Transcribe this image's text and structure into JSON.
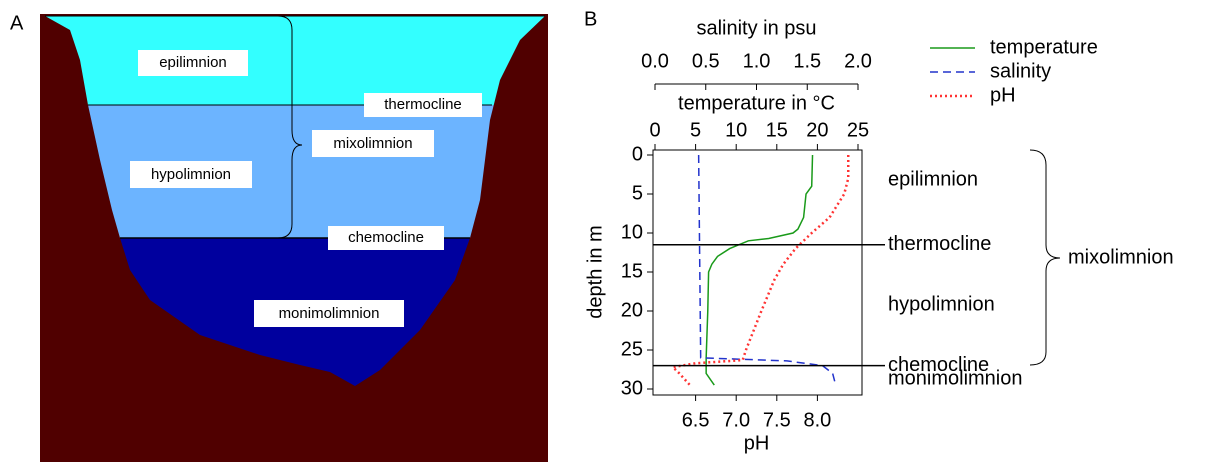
{
  "panel_a": {
    "label": "A",
    "epilimnion": "epilimnion",
    "thermocline": "thermocline",
    "hypolimnion": "hypolimnion",
    "mixolimnion": "mixolimnion",
    "chemocline": "chemocline",
    "monimolimnion": "monimolimnion"
  },
  "chart_data": {
    "type": "line",
    "panel_label": "B",
    "x_axes": [
      {
        "title": "salinity in psu",
        "xlim": [
          0,
          2
        ],
        "xticks": [
          {
            "value": 0,
            "label": "0.0"
          },
          0.5,
          {
            "value": 1,
            "label": "1.0"
          },
          1.5,
          {
            "value": 2,
            "label": "2.0"
          }
        ]
      },
      {
        "title": "temperature in °C",
        "xlim": [
          0,
          25
        ],
        "xticks": [
          0,
          5,
          10,
          15,
          20,
          25
        ]
      },
      {
        "title": "pH",
        "xlim": [
          6,
          8.5
        ],
        "xticks": [
          6.5,
          {
            "value": 7,
            "label": "7.0"
          },
          7.5,
          {
            "value": 8,
            "label": "8.0"
          }
        ]
      }
    ],
    "y_label": "depth in m",
    "ylim": [
      0,
      30
    ],
    "yticks": [
      0,
      5,
      10,
      15,
      20,
      25,
      30
    ],
    "y_inverted": true,
    "series": [
      {
        "name": "temperature",
        "color": "#1a9a1a",
        "style": "solid",
        "axis": 1,
        "depth": [
          0,
          4,
          5,
          8,
          9.5,
          10,
          10.7,
          11,
          12,
          13,
          14,
          15,
          20,
          26,
          28,
          29.5
        ],
        "values": [
          19.4,
          19.3,
          18.6,
          18.3,
          17.6,
          17.0,
          14,
          11.5,
          9.2,
          7.7,
          7.0,
          6.6,
          6.5,
          6.3,
          6.3,
          7.3
        ]
      },
      {
        "name": "salinity",
        "color": "#2233cc",
        "style": "dashed",
        "axis": 0,
        "depth": [
          0,
          26,
          26.4,
          27,
          28,
          29.5
        ],
        "values": [
          0.43,
          0.45,
          1.3,
          1.65,
          1.75,
          1.78
        ]
      },
      {
        "name": "pH",
        "color": "#ff3333",
        "style": "dotted",
        "axis": 2,
        "depth": [
          0,
          3,
          5,
          8,
          10,
          12,
          14,
          16,
          20,
          25,
          26.3,
          26.7,
          27.2,
          28,
          29.5
        ],
        "values": [
          8.38,
          8.38,
          8.33,
          8.15,
          7.93,
          7.73,
          7.58,
          7.47,
          7.31,
          7.12,
          7.08,
          6.5,
          6.22,
          6.3,
          6.43
        ]
      }
    ],
    "boundaries": [
      {
        "label": "thermocline",
        "depth": 11.5
      },
      {
        "label": "chemocline",
        "depth": 27
      }
    ],
    "layers": [
      {
        "label": "epilimnion",
        "depth": 4
      },
      {
        "label": "hypolimnion",
        "depth": 20
      },
      {
        "label": "monimolimnion",
        "depth": 29.5
      }
    ],
    "bracket_label": "mixolimnion"
  }
}
